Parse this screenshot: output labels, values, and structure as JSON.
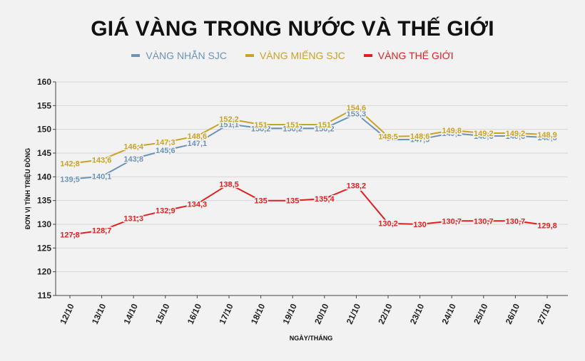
{
  "title": "GIÁ VÀNG TRONG NƯỚC VÀ THẾ GIỚI",
  "chart_data": {
    "type": "line",
    "title": "GIÁ VÀNG TRONG NƯỚC VÀ THẾ GIỚI",
    "xlabel": "NGÀY/THÁNG",
    "ylabel": "ĐƠN VỊ TÍNH TRIỆU ĐỒNG",
    "ylim": [
      115,
      160
    ],
    "yticks": [
      "115",
      "120",
      "125",
      "130",
      "135",
      "140",
      "145",
      "150",
      "155",
      "160"
    ],
    "grid": true,
    "legend_position": "top-center",
    "categories": [
      "12/10",
      "13/10",
      "14/10",
      "15/10",
      "16/10",
      "17/10",
      "18/10",
      "19/10",
      "20/10",
      "21/10",
      "22/10",
      "23/10",
      "24/10",
      "25/10",
      "26/10",
      "27/10"
    ],
    "series": [
      {
        "name": "VÀNG NHẪN SJC",
        "color": "#6b93b5",
        "values": [
          139.5,
          140.1,
          143.8,
          145.6,
          147.1,
          151.1,
          150.2,
          150.2,
          150.2,
          153.3,
          147.8,
          147.9,
          149.2,
          148.6,
          148.6,
          148.3
        ],
        "labels": [
          "139,5",
          "140,1",
          "143,8",
          "145,6",
          "147,1",
          "151,1",
          "150,2",
          "150,2",
          "150,2",
          "153,3",
          "",
          "147,9",
          "149,2",
          "148,6",
          "148,6",
          "148,3"
        ]
      },
      {
        "name": "VÀNG MIẾNG SJC",
        "color": "#c9a227",
        "values": [
          142.8,
          143.6,
          146.4,
          147.3,
          148.6,
          152.2,
          151,
          151,
          151,
          154.6,
          148.5,
          148.6,
          149.8,
          149.2,
          149.2,
          148.9
        ],
        "labels": [
          "142,8",
          "143,6",
          "146,4",
          "147,3",
          "148,6",
          "152,2",
          "151",
          "151",
          "151",
          "154,6",
          "148,5",
          "148,6",
          "149,8",
          "149,2",
          "149,2",
          "148,9"
        ]
      },
      {
        "name": "VÀNG THẾ GIỚI",
        "color": "#e02020",
        "values": [
          127.8,
          128.7,
          131.3,
          132.9,
          134.3,
          138.5,
          135,
          135,
          135.4,
          138.2,
          130.2,
          130,
          130.7,
          130.7,
          130.7,
          129.8
        ],
        "labels": [
          "127,8",
          "128,7",
          "131,3",
          "132,9",
          "134,3",
          "138,5",
          "135",
          "135",
          "135,4",
          "138,2",
          "130,2",
          "130",
          "130,7",
          "130,7",
          "130,7",
          "129,8"
        ]
      }
    ]
  }
}
